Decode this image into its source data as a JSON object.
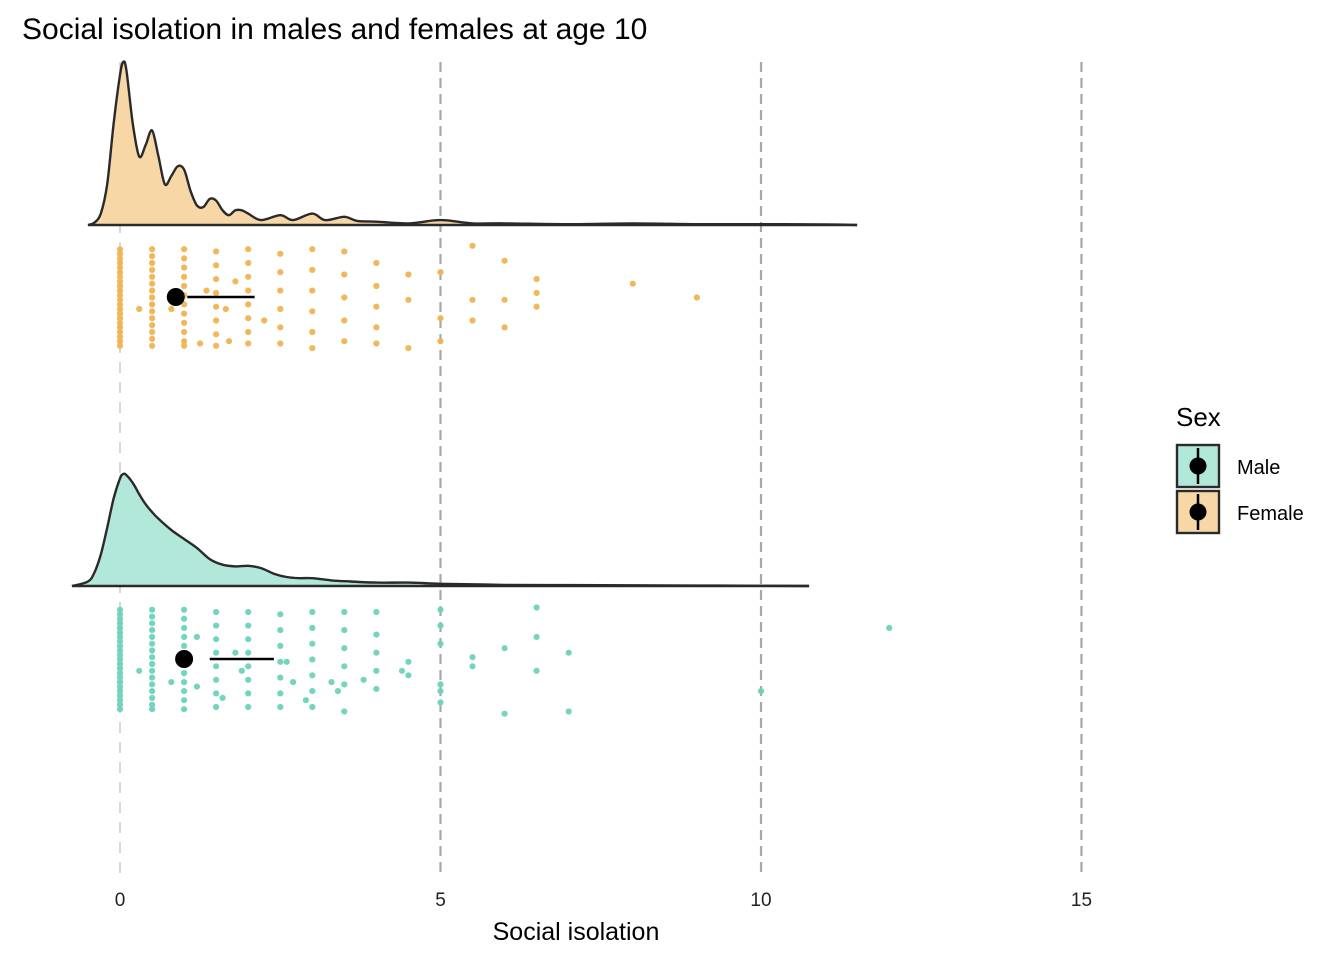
{
  "chart_data": {
    "type": "raincloud",
    "title": "Social isolation in males and females at age 10",
    "xlabel": "Social isolation",
    "ylabel": "",
    "xlim": [
      -0.75,
      18
    ],
    "x_ticks": [
      0,
      5,
      10,
      15
    ],
    "x_tick_labels": [
      "0",
      "5",
      "10",
      "15"
    ],
    "grid": "vertical dashed at x ticks",
    "legend": {
      "title": "Sex",
      "position": "right",
      "entries": [
        "Male",
        "Female"
      ]
    },
    "colors": {
      "Male": "#6dd3bc",
      "Female": "#f0b350",
      "Male_fill": "#b2e8da",
      "Female_fill": "#f8d7a6",
      "outline": "#2a2a2a",
      "grid": "#b3b3b3"
    },
    "series": [
      {
        "name": "Female",
        "density": {
          "x": [
            -0.5,
            -0.4,
            -0.3,
            -0.2,
            -0.1,
            0,
            0.05,
            0.1,
            0.2,
            0.3,
            0.4,
            0.5,
            0.6,
            0.7,
            0.8,
            0.9,
            1.0,
            1.1,
            1.2,
            1.3,
            1.4,
            1.5,
            1.6,
            1.7,
            1.8,
            1.9,
            2.0,
            2.2,
            2.5,
            2.7,
            3.0,
            3.2,
            3.5,
            3.7,
            4.0,
            4.5,
            5.0,
            5.5,
            6.0,
            7.0,
            8.0,
            9.0,
            10.0,
            11.0,
            11.5
          ],
          "y": [
            0.0,
            0.015,
            0.07,
            0.25,
            0.62,
            0.92,
            1.0,
            0.95,
            0.62,
            0.42,
            0.49,
            0.58,
            0.42,
            0.25,
            0.3,
            0.36,
            0.34,
            0.21,
            0.12,
            0.11,
            0.16,
            0.15,
            0.09,
            0.06,
            0.09,
            0.09,
            0.07,
            0.03,
            0.06,
            0.03,
            0.07,
            0.03,
            0.05,
            0.025,
            0.02,
            0.01,
            0.03,
            0.01,
            0.01,
            0.005,
            0.01,
            0.005,
            0.005,
            0.003,
            0.0
          ]
        },
        "points": [
          [
            0,
            0.92
          ],
          [
            0,
            0.88
          ],
          [
            0,
            0.84
          ],
          [
            0,
            0.8
          ],
          [
            0,
            0.76
          ],
          [
            0,
            0.72
          ],
          [
            0,
            0.68
          ],
          [
            0,
            0.64
          ],
          [
            0,
            0.6
          ],
          [
            0,
            0.56
          ],
          [
            0,
            0.52
          ],
          [
            0,
            0.48
          ],
          [
            0,
            0.44
          ],
          [
            0,
            0.4
          ],
          [
            0,
            0.36
          ],
          [
            0,
            0.32
          ],
          [
            0,
            0.28
          ],
          [
            0,
            0.24
          ],
          [
            0,
            0.2
          ],
          [
            0,
            0.16
          ],
          [
            0,
            0.12
          ],
          [
            0,
            0.08
          ],
          [
            0.5,
            0.92
          ],
          [
            0.5,
            0.86
          ],
          [
            0.5,
            0.8
          ],
          [
            0.5,
            0.74
          ],
          [
            0.5,
            0.68
          ],
          [
            0.5,
            0.62
          ],
          [
            0.5,
            0.56
          ],
          [
            0.5,
            0.5
          ],
          [
            0.5,
            0.44
          ],
          [
            0.5,
            0.38
          ],
          [
            0.5,
            0.32
          ],
          [
            0.5,
            0.26
          ],
          [
            0.5,
            0.2
          ],
          [
            0.5,
            0.14
          ],
          [
            0.5,
            0.08
          ],
          [
            1,
            0.92
          ],
          [
            1,
            0.84
          ],
          [
            1,
            0.76
          ],
          [
            1,
            0.68
          ],
          [
            1,
            0.6
          ],
          [
            1,
            0.52
          ],
          [
            1,
            0.44
          ],
          [
            1,
            0.36
          ],
          [
            1,
            0.28
          ],
          [
            1,
            0.2
          ],
          [
            1,
            0.12
          ],
          [
            1,
            0.08
          ],
          [
            1.5,
            0.9
          ],
          [
            1.5,
            0.78
          ],
          [
            1.5,
            0.66
          ],
          [
            1.5,
            0.54
          ],
          [
            1.5,
            0.42
          ],
          [
            1.5,
            0.3
          ],
          [
            1.5,
            0.18
          ],
          [
            1.5,
            0.08
          ],
          [
            2,
            0.92
          ],
          [
            2,
            0.8
          ],
          [
            2,
            0.68
          ],
          [
            2,
            0.56
          ],
          [
            2,
            0.44
          ],
          [
            2,
            0.32
          ],
          [
            2,
            0.2
          ],
          [
            2,
            0.1
          ],
          [
            2.5,
            0.88
          ],
          [
            2.5,
            0.72
          ],
          [
            2.5,
            0.56
          ],
          [
            2.5,
            0.4
          ],
          [
            2.5,
            0.24
          ],
          [
            2.5,
            0.1
          ],
          [
            3,
            0.92
          ],
          [
            3,
            0.74
          ],
          [
            3,
            0.56
          ],
          [
            3,
            0.38
          ],
          [
            3,
            0.2
          ],
          [
            3,
            0.06
          ],
          [
            3.5,
            0.9
          ],
          [
            3.5,
            0.7
          ],
          [
            3.5,
            0.5
          ],
          [
            3.5,
            0.3
          ],
          [
            3.5,
            0.12
          ],
          [
            4,
            0.8
          ],
          [
            4,
            0.6
          ],
          [
            4,
            0.42
          ],
          [
            4,
            0.24
          ],
          [
            4,
            0.1
          ],
          [
            4.5,
            0.7
          ],
          [
            4.5,
            0.48
          ],
          [
            4.5,
            0.06
          ],
          [
            5,
            0.72
          ],
          [
            5,
            0.32
          ],
          [
            5,
            0.12
          ],
          [
            5.5,
            0.95
          ],
          [
            5.5,
            0.48
          ],
          [
            5.5,
            0.3
          ],
          [
            6,
            0.82
          ],
          [
            6,
            0.48
          ],
          [
            6,
            0.24
          ],
          [
            6.5,
            0.66
          ],
          [
            6.5,
            0.54
          ],
          [
            6.5,
            0.42
          ],
          [
            8,
            0.62
          ],
          [
            9,
            0.5
          ],
          [
            0.8,
            0.4
          ],
          [
            1.25,
            0.1
          ],
          [
            1.8,
            0.64
          ],
          [
            1.7,
            0.12
          ],
          [
            2.25,
            0.3
          ],
          [
            0.3,
            0.4
          ],
          [
            1.35,
            0.56
          ],
          [
            1.65,
            0.4
          ]
        ],
        "mean": 0.87,
        "interval": [
          1.05,
          2.1
        ]
      },
      {
        "name": "Male",
        "density": {
          "x": [
            -0.75,
            -0.5,
            -0.4,
            -0.3,
            -0.2,
            -0.1,
            0,
            0.05,
            0.1,
            0.2,
            0.3,
            0.4,
            0.5,
            0.6,
            0.8,
            1.0,
            1.2,
            1.4,
            1.6,
            1.8,
            2.0,
            2.2,
            2.4,
            2.6,
            2.8,
            3.0,
            3.3,
            3.6,
            4.0,
            4.5,
            5.0,
            5.5,
            6.0,
            7.0,
            8.0,
            9.0,
            10.0,
            10.75
          ],
          "y": [
            0.0,
            0.04,
            0.12,
            0.28,
            0.52,
            0.78,
            0.96,
            1.0,
            0.99,
            0.92,
            0.82,
            0.73,
            0.66,
            0.6,
            0.5,
            0.42,
            0.34,
            0.24,
            0.19,
            0.175,
            0.18,
            0.16,
            0.11,
            0.08,
            0.07,
            0.07,
            0.05,
            0.04,
            0.03,
            0.03,
            0.02,
            0.015,
            0.01,
            0.008,
            0.006,
            0.004,
            0.002,
            0.0
          ]
        },
        "points": [
          [
            0,
            0.94
          ],
          [
            0,
            0.9
          ],
          [
            0,
            0.86
          ],
          [
            0,
            0.82
          ],
          [
            0,
            0.78
          ],
          [
            0,
            0.74
          ],
          [
            0,
            0.7
          ],
          [
            0,
            0.66
          ],
          [
            0,
            0.62
          ],
          [
            0,
            0.58
          ],
          [
            0,
            0.54
          ],
          [
            0,
            0.5
          ],
          [
            0,
            0.46
          ],
          [
            0,
            0.42
          ],
          [
            0,
            0.38
          ],
          [
            0,
            0.34
          ],
          [
            0,
            0.3
          ],
          [
            0,
            0.26
          ],
          [
            0,
            0.22
          ],
          [
            0,
            0.18
          ],
          [
            0,
            0.14
          ],
          [
            0,
            0.1
          ],
          [
            0,
            0.06
          ],
          [
            0.5,
            0.94
          ],
          [
            0.5,
            0.88
          ],
          [
            0.5,
            0.82
          ],
          [
            0.5,
            0.76
          ],
          [
            0.5,
            0.7
          ],
          [
            0.5,
            0.64
          ],
          [
            0.5,
            0.58
          ],
          [
            0.5,
            0.52
          ],
          [
            0.5,
            0.46
          ],
          [
            0.5,
            0.4
          ],
          [
            0.5,
            0.34
          ],
          [
            0.5,
            0.28
          ],
          [
            0.5,
            0.22
          ],
          [
            0.5,
            0.16
          ],
          [
            0.5,
            0.1
          ],
          [
            0.5,
            0.06
          ],
          [
            1,
            0.94
          ],
          [
            1,
            0.86
          ],
          [
            1,
            0.78
          ],
          [
            1,
            0.7
          ],
          [
            1,
            0.62
          ],
          [
            1,
            0.54
          ],
          [
            1,
            0.46
          ],
          [
            1,
            0.38
          ],
          [
            1,
            0.3
          ],
          [
            1,
            0.22
          ],
          [
            1,
            0.14
          ],
          [
            1,
            0.06
          ],
          [
            1.5,
            0.92
          ],
          [
            1.5,
            0.8
          ],
          [
            1.5,
            0.68
          ],
          [
            1.5,
            0.56
          ],
          [
            1.5,
            0.44
          ],
          [
            1.5,
            0.32
          ],
          [
            1.5,
            0.2
          ],
          [
            1.5,
            0.08
          ],
          [
            2,
            0.92
          ],
          [
            2,
            0.8
          ],
          [
            2,
            0.68
          ],
          [
            2,
            0.56
          ],
          [
            2,
            0.44
          ],
          [
            2,
            0.32
          ],
          [
            2,
            0.2
          ],
          [
            2,
            0.08
          ],
          [
            2.5,
            0.9
          ],
          [
            2.5,
            0.76
          ],
          [
            2.5,
            0.62
          ],
          [
            2.5,
            0.48
          ],
          [
            2.5,
            0.34
          ],
          [
            2.5,
            0.2
          ],
          [
            2.5,
            0.08
          ],
          [
            3,
            0.92
          ],
          [
            3,
            0.78
          ],
          [
            3,
            0.64
          ],
          [
            3,
            0.5
          ],
          [
            3,
            0.36
          ],
          [
            3,
            0.22
          ],
          [
            3,
            0.08
          ],
          [
            3.5,
            0.92
          ],
          [
            3.5,
            0.76
          ],
          [
            3.5,
            0.6
          ],
          [
            3.5,
            0.44
          ],
          [
            3.5,
            0.28
          ],
          [
            3.5,
            0.04
          ],
          [
            4,
            0.92
          ],
          [
            4,
            0.72
          ],
          [
            4,
            0.56
          ],
          [
            4,
            0.4
          ],
          [
            4,
            0.24
          ],
          [
            4.5,
            0.48
          ],
          [
            4.5,
            0.36
          ],
          [
            5,
            0.94
          ],
          [
            5,
            0.8
          ],
          [
            5,
            0.64
          ],
          [
            5,
            0.28
          ],
          [
            5,
            0.22
          ],
          [
            5,
            0.12
          ],
          [
            5.5,
            0.52
          ],
          [
            5.5,
            0.44
          ],
          [
            6,
            0.6
          ],
          [
            6,
            0.02
          ],
          [
            6.5,
            0.96
          ],
          [
            6.5,
            0.7
          ],
          [
            6.5,
            0.4
          ],
          [
            7,
            0.56
          ],
          [
            7,
            0.04
          ],
          [
            10,
            0.22
          ],
          [
            12,
            0.78
          ],
          [
            1.2,
            0.7
          ],
          [
            1.2,
            0.26
          ],
          [
            1.6,
            0.16
          ],
          [
            0.3,
            0.4
          ],
          [
            0.8,
            0.3
          ],
          [
            1.9,
            0.4
          ],
          [
            2.6,
            0.48
          ],
          [
            2.7,
            0.3
          ],
          [
            3.3,
            0.3
          ],
          [
            3.8,
            0.32
          ],
          [
            4.4,
            0.4
          ],
          [
            2.9,
            0.14
          ],
          [
            1.8,
            0.56
          ],
          [
            3.4,
            0.22
          ]
        ],
        "mean": 1.0,
        "interval": [
          1.4,
          2.4
        ]
      }
    ]
  }
}
